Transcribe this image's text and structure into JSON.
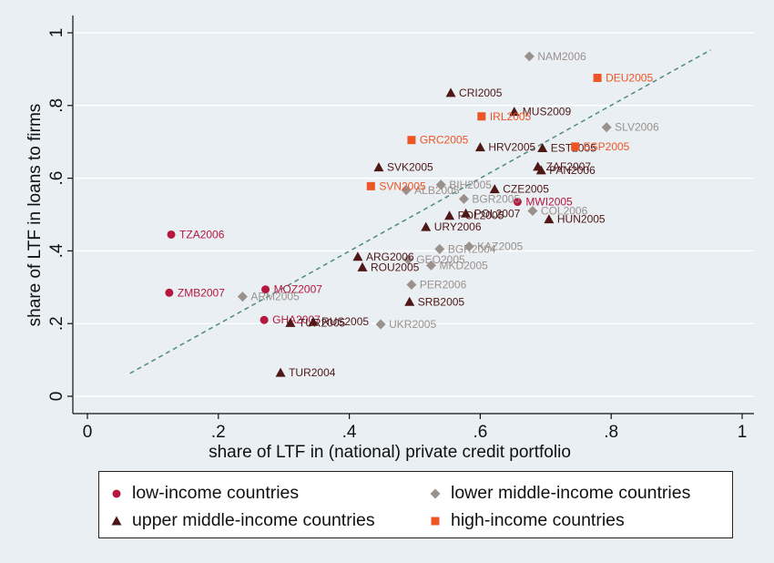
{
  "chart_data": {
    "type": "scatter",
    "xlabel": "share of LTF in (national) private credit portfolio",
    "ylabel": "share of LTF in loans to firms",
    "xlim": [
      0,
      1
    ],
    "ylim": [
      0,
      1
    ],
    "x_ticks": [
      "0",
      ".2",
      ".4",
      ".6",
      ".8",
      "1"
    ],
    "y_ticks": [
      "0",
      ".2",
      ".4",
      ".6",
      ".8",
      "1"
    ],
    "grid": "horizontal",
    "legend_position": "bottom",
    "fit_line": {
      "style": "dashed",
      "color": "#4f8a82",
      "x": [
        0.065,
        0.952
      ],
      "y": [
        0.063,
        0.953
      ]
    },
    "series": [
      {
        "name": "low-income countries",
        "marker": "circle",
        "color": "#b5173f",
        "points": [
          {
            "label": "TZA2006",
            "x": 0.128,
            "y": 0.445
          },
          {
            "label": "ZMB2007",
            "x": 0.125,
            "y": 0.285
          },
          {
            "label": "MOZ2007",
            "x": 0.272,
            "y": 0.294
          },
          {
            "label": "GHA2007",
            "x": 0.27,
            "y": 0.21
          },
          {
            "label": "MWI2005",
            "x": 0.657,
            "y": 0.535
          }
        ]
      },
      {
        "name": "lower middle-income countries",
        "marker": "diamond",
        "color": "#9b918c",
        "points": [
          {
            "label": "NAM2006",
            "x": 0.675,
            "y": 0.935
          },
          {
            "label": "SLV2006",
            "x": 0.793,
            "y": 0.74
          },
          {
            "label": "ALB2005",
            "x": 0.487,
            "y": 0.567
          },
          {
            "label": "BIH2005",
            "x": 0.54,
            "y": 0.582
          },
          {
            "label": "BGR2005",
            "x": 0.575,
            "y": 0.543
          },
          {
            "label": "COL2006",
            "x": 0.68,
            "y": 0.51
          },
          {
            "label": "GEO2005",
            "x": 0.49,
            "y": 0.376
          },
          {
            "label": "MKD2005",
            "x": 0.525,
            "y": 0.36
          },
          {
            "label": "BGR2004",
            "x": 0.538,
            "y": 0.405
          },
          {
            "label": "KAZ2005",
            "x": 0.583,
            "y": 0.412
          },
          {
            "label": "ARM2005",
            "x": 0.237,
            "y": 0.274
          },
          {
            "label": "PER2006",
            "x": 0.495,
            "y": 0.307
          },
          {
            "label": "UKR2005",
            "x": 0.448,
            "y": 0.198
          }
        ]
      },
      {
        "name": "upper middle-income countries",
        "marker": "triangle",
        "color": "#4f1716",
        "points": [
          {
            "label": "CRI2005",
            "x": 0.555,
            "y": 0.835
          },
          {
            "label": "MUS2009",
            "x": 0.652,
            "y": 0.783
          },
          {
            "label": "HRV2005",
            "x": 0.6,
            "y": 0.685
          },
          {
            "label": "EST2005",
            "x": 0.695,
            "y": 0.683
          },
          {
            "label": "ZAF2007",
            "x": 0.688,
            "y": 0.632
          },
          {
            "label": "PAN2006",
            "x": 0.693,
            "y": 0.622
          },
          {
            "label": "SVK2005",
            "x": 0.445,
            "y": 0.63
          },
          {
            "label": "CZE2005",
            "x": 0.622,
            "y": 0.57
          },
          {
            "label": "POL2007",
            "x": 0.578,
            "y": 0.503
          },
          {
            "label": "POL2005",
            "x": 0.553,
            "y": 0.497
          },
          {
            "label": "HUN2005",
            "x": 0.705,
            "y": 0.487
          },
          {
            "label": "URY2006",
            "x": 0.517,
            "y": 0.466
          },
          {
            "label": "ARG2006",
            "x": 0.413,
            "y": 0.384
          },
          {
            "label": "ROU2005",
            "x": 0.42,
            "y": 0.355
          },
          {
            "label": "SRB2005",
            "x": 0.492,
            "y": 0.26
          },
          {
            "label": "TUR2005",
            "x": 0.31,
            "y": 0.202
          },
          {
            "label": "RUS2005",
            "x": 0.345,
            "y": 0.205
          },
          {
            "label": "TUR2004",
            "x": 0.295,
            "y": 0.065
          }
        ]
      },
      {
        "name": "high-income countries",
        "marker": "square",
        "color": "#ee5524",
        "points": [
          {
            "label": "DEU2005",
            "x": 0.779,
            "y": 0.876
          },
          {
            "label": "IRL2005",
            "x": 0.602,
            "y": 0.77
          },
          {
            "label": "GRC2005",
            "x": 0.495,
            "y": 0.705
          },
          {
            "label": "ESP2005",
            "x": 0.745,
            "y": 0.687
          },
          {
            "label": "SVN2005",
            "x": 0.433,
            "y": 0.578
          }
        ]
      }
    ]
  }
}
